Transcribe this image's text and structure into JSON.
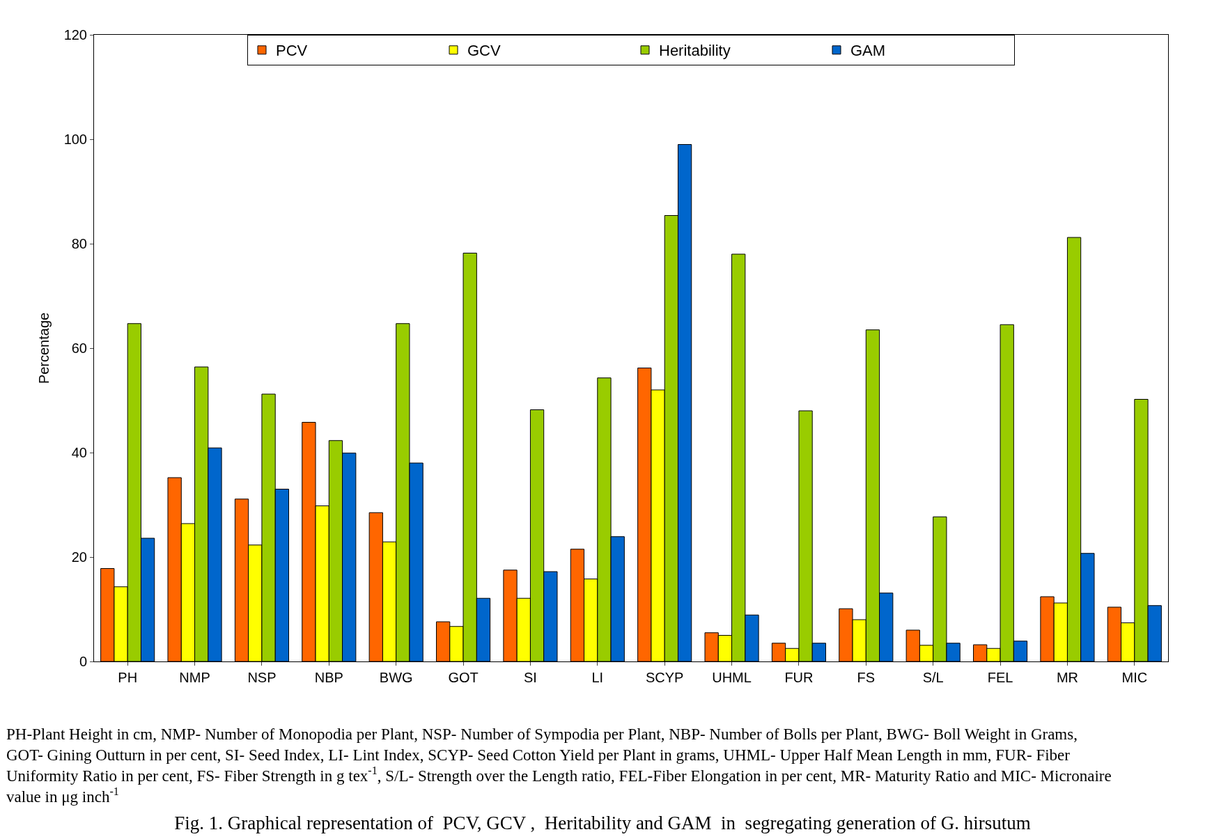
{
  "chart_data": {
    "type": "bar",
    "title": "Fig. 1. Graphical representation of  PCV, GCV ,  Heritability and GAM  in  segregating generation of G. hirsutum",
    "ylabel": "Percentage",
    "categories": [
      "PH",
      "NMP",
      "NSP",
      "NBP",
      "BWG",
      "GOT",
      "SI",
      "LI",
      "SCYP",
      "UHML",
      "FUR",
      "FS",
      "S/L",
      "FEL",
      "MR",
      "MIC"
    ],
    "series": [
      {
        "name": "PCV",
        "color": "#ff6600",
        "values": [
          17.8,
          35.2,
          31.1,
          45.8,
          28.5,
          7.6,
          17.5,
          21.5,
          56.2,
          5.5,
          3.5,
          10.1,
          6.0,
          3.2,
          12.4,
          10.4
        ]
      },
      {
        "name": "GCV",
        "color": "#ffff00",
        "values": [
          14.3,
          26.4,
          22.3,
          29.8,
          22.9,
          6.7,
          12.1,
          15.8,
          52.0,
          5.0,
          2.5,
          8.0,
          3.1,
          2.5,
          11.2,
          7.4
        ]
      },
      {
        "name": "Heritability",
        "color": "#99cc00",
        "values": [
          64.7,
          56.4,
          51.2,
          42.3,
          64.7,
          78.2,
          48.2,
          54.3,
          85.4,
          78.0,
          48.0,
          63.5,
          27.7,
          64.5,
          81.2,
          50.2
        ]
      },
      {
        "name": "GAM",
        "color": "#0066cc",
        "values": [
          23.6,
          40.9,
          33.0,
          39.9,
          38.0,
          12.1,
          17.2,
          23.9,
          99.0,
          8.9,
          3.5,
          13.1,
          3.5,
          3.9,
          20.7,
          10.7
        ]
      }
    ],
    "ylim": [
      0,
      120
    ],
    "yticks": [
      0,
      20,
      40,
      60,
      80,
      100,
      120
    ],
    "legend": "top",
    "annotations": [
      "PH-Plant Height in cm, NMP- Number of Monopodia per Plant, NSP- Number of Sympodia per Plant, NBP- Number of Bolls per Plant, BWG- Boll Weight in Grams,\nGOT- Gining Outturn in per cent, SI- Seed Index, LI- Lint Index, SCYP- Seed Cotton Yield per Plant in grams, UHML- Upper Half Mean Length in mm, FUR- Fiber\nUniformity Ratio in per cent, FS- Fiber Strength in g tex$^{-1}$, S/L- Strength over the Length ratio, FEL-Fiber Elongation in per cent, MR- Maturity Ratio and MIC- Micronaire\nvalue in μg inch$^{-1}$"
    ]
  }
}
